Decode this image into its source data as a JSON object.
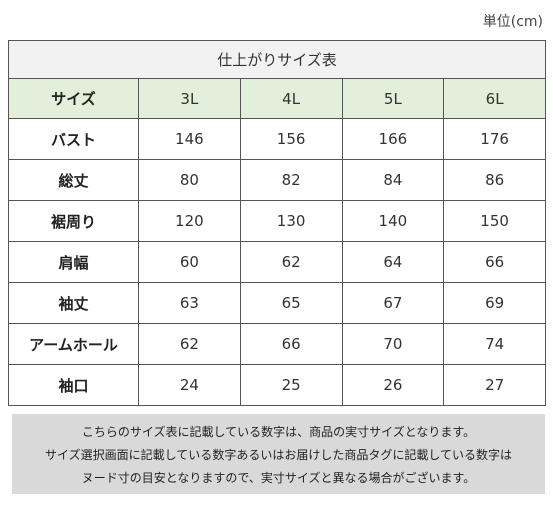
{
  "unit_label": "単位(cm)",
  "table": {
    "title": "仕上がりサイズ表",
    "header_label": "サイズ",
    "sizes": [
      "3L",
      "4L",
      "5L",
      "6L"
    ],
    "rows": [
      {
        "label": "バスト",
        "values": [
          "146",
          "156",
          "166",
          "176"
        ]
      },
      {
        "label": "総丈",
        "values": [
          "80",
          "82",
          "84",
          "86"
        ]
      },
      {
        "label": "裾周り",
        "values": [
          "120",
          "130",
          "140",
          "150"
        ]
      },
      {
        "label": "肩幅",
        "values": [
          "60",
          "62",
          "64",
          "66"
        ]
      },
      {
        "label": "袖丈",
        "values": [
          "63",
          "65",
          "67",
          "69"
        ]
      },
      {
        "label": "アームホール",
        "values": [
          "62",
          "66",
          "70",
          "74"
        ]
      },
      {
        "label": "袖口",
        "values": [
          "24",
          "25",
          "26",
          "27"
        ]
      }
    ]
  },
  "note": {
    "lines": [
      "こちらのサイズ表に記載している数字は、商品の実寸サイズとなります。",
      "サイズ選択画面に記載している数字あるいはお届けした商品タグに記載している数字は",
      "ヌード寸の目安となりますので、実寸サイズと異なる場合がございます。"
    ]
  },
  "colors": {
    "header_bg": "#e2efda",
    "title_bg": "#f2f2f2",
    "note_bg": "#d9d9d9"
  }
}
